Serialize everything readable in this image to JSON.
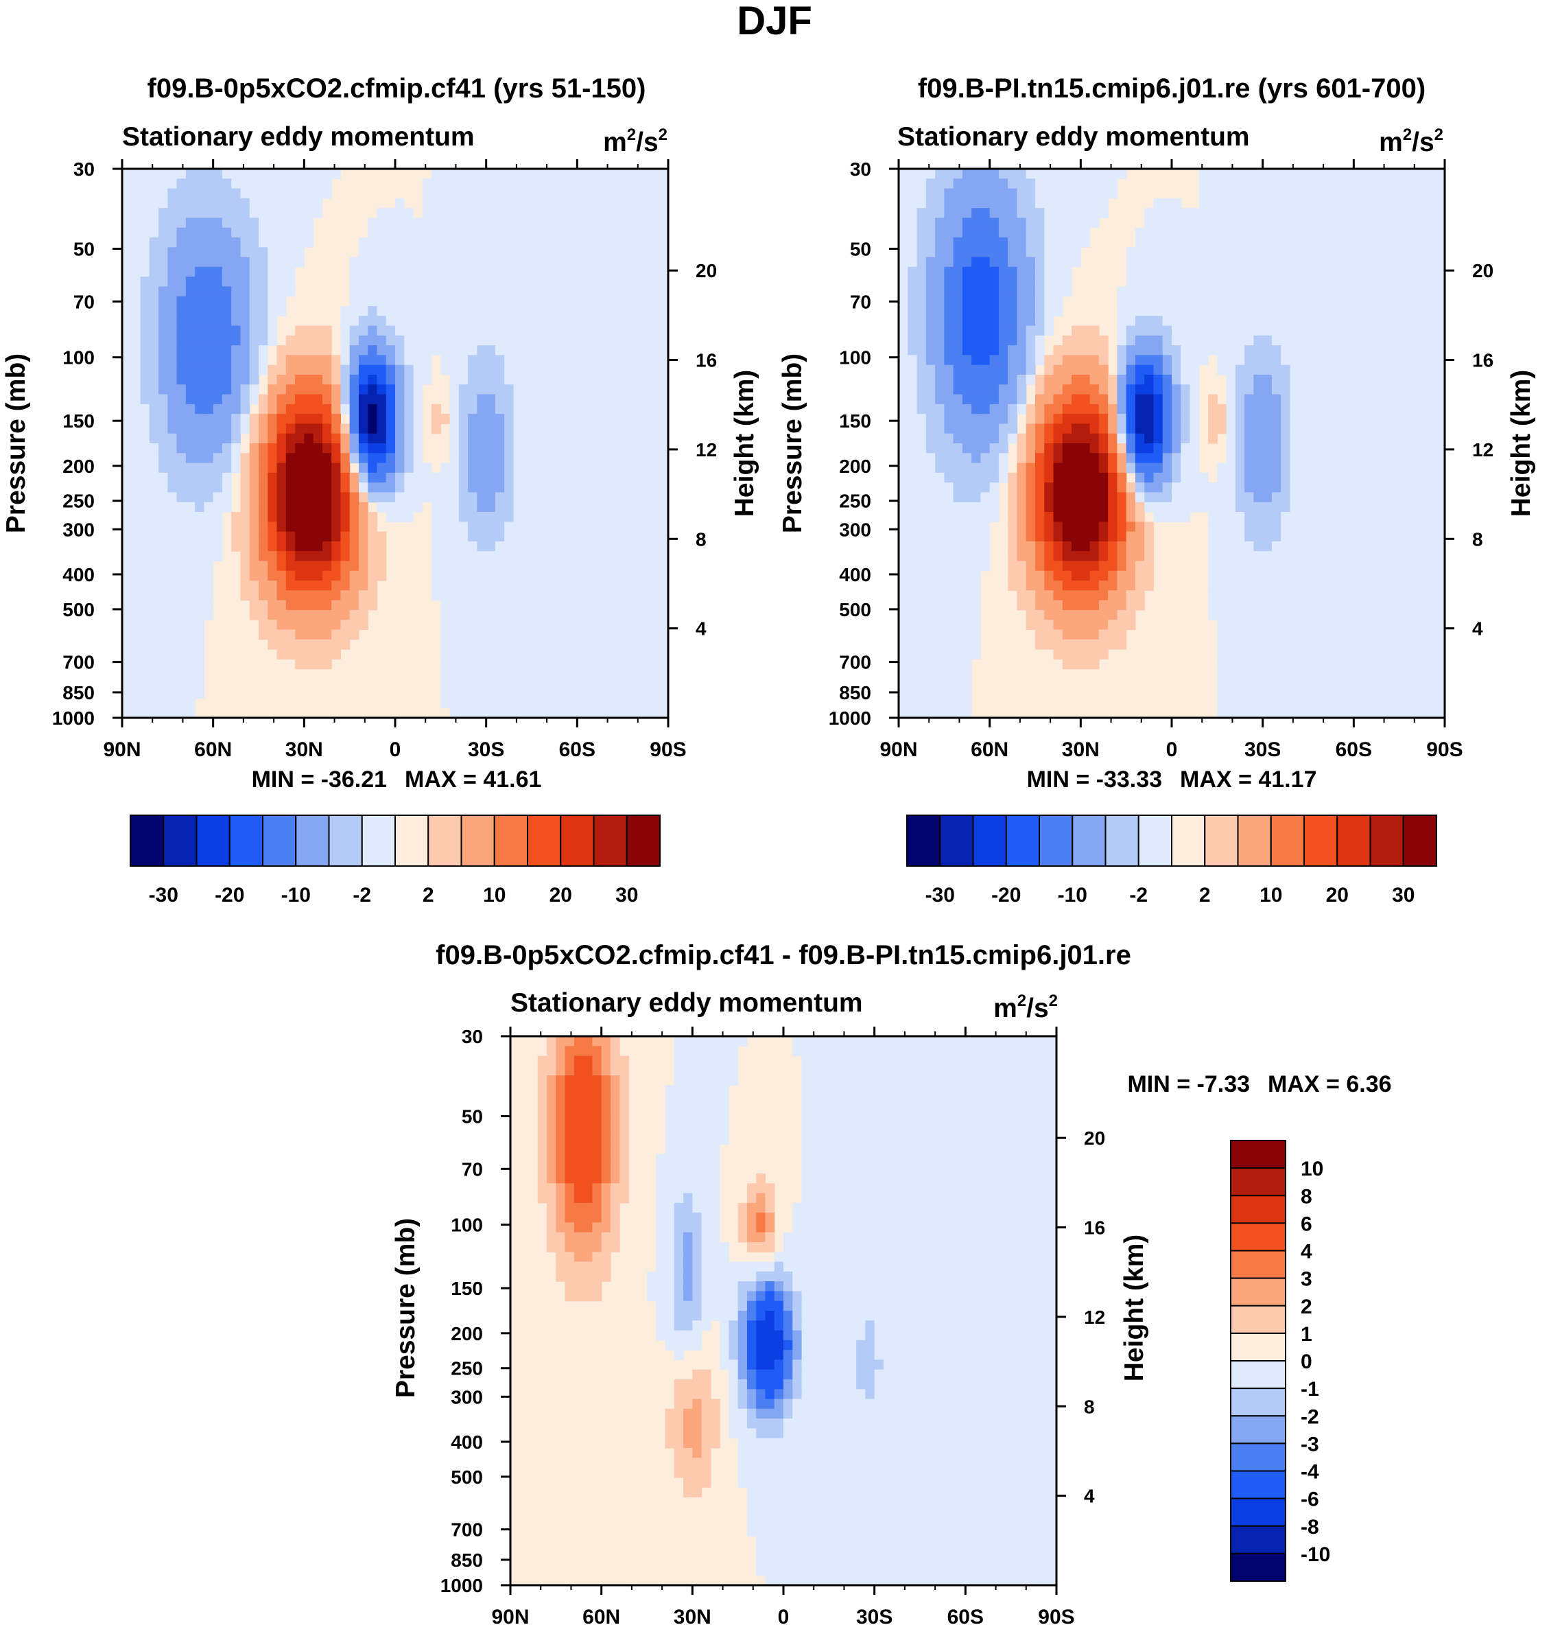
{
  "figure_title": "DJF",
  "chart_data": [
    {
      "type": "heatmap",
      "title": "f09.B-0p5xCO2.cfmip.cf41 (yrs 51-150)",
      "left_subtitle": "Stationary eddy momentum",
      "units": {
        "base": "m",
        "exp1": "2",
        "mid": "/s",
        "exp2": "2"
      },
      "ylabel": "Pressure (mb)",
      "ylabel_right": "Height (km)",
      "x_ticks": [
        "90N",
        "60N",
        "30N",
        "0",
        "30S",
        "60S",
        "90S"
      ],
      "y_ticks": [
        30,
        50,
        70,
        100,
        150,
        200,
        250,
        300,
        400,
        500,
        700,
        850,
        1000
      ],
      "height_ticks": [
        20,
        16,
        12,
        8,
        4
      ],
      "min": -36.21,
      "max": 41.61,
      "stats_text": {
        "min_label": "MIN = -36.21",
        "max_label": "MAX =  41.61"
      },
      "colorbar_ticks": [
        "-30",
        "-20",
        "-10",
        "-2",
        "2",
        "10",
        "20",
        "30"
      ],
      "features": [
        {
          "lat": 62,
          "p": 90,
          "value": -15,
          "lat_width": 11,
          "p_width": 0.55
        },
        {
          "lat": 28,
          "p": 240,
          "value": 41.61,
          "lat_width": 11,
          "p_width": 0.45
        },
        {
          "lat": 8,
          "p": 150,
          "value": -36.21,
          "lat_width": 6,
          "p_width": 0.3
        },
        {
          "lat": -30,
          "p": 180,
          "value": -8,
          "lat_width": 6,
          "p_width": 0.4
        },
        {
          "lat": -15,
          "p": 150,
          "value": 3,
          "lat_width": 3,
          "p_width": 0.15
        }
      ]
    },
    {
      "type": "heatmap",
      "title": "f09.B-PI.tn15.cmip6.j01.re (yrs 601-700)",
      "left_subtitle": "Stationary eddy momentum",
      "units": {
        "base": "m",
        "exp1": "2",
        "mid": "/s",
        "exp2": "2"
      },
      "ylabel": "Pressure (mb)",
      "ylabel_right": "Height (km)",
      "x_ticks": [
        "90N",
        "60N",
        "30N",
        "0",
        "30S",
        "60S",
        "90S"
      ],
      "y_ticks": [
        30,
        50,
        70,
        100,
        150,
        200,
        250,
        300,
        400,
        500,
        700,
        850,
        1000
      ],
      "height_ticks": [
        20,
        16,
        12,
        8,
        4
      ],
      "min": -33.33,
      "max": 41.17,
      "stats_text": {
        "min_label": "MIN = -33.33",
        "max_label": "MAX =  41.17"
      },
      "colorbar_ticks": [
        "-30",
        "-20",
        "-10",
        "-2",
        "2",
        "10",
        "20",
        "30"
      ],
      "features": [
        {
          "lat": 63,
          "p": 75,
          "value": -18,
          "lat_width": 11,
          "p_width": 0.6
        },
        {
          "lat": 30,
          "p": 240,
          "value": 41.17,
          "lat_width": 11,
          "p_width": 0.45
        },
        {
          "lat": 9,
          "p": 150,
          "value": -33.33,
          "lat_width": 6,
          "p_width": 0.3
        },
        {
          "lat": -30,
          "p": 170,
          "value": -9,
          "lat_width": 6,
          "p_width": 0.4
        },
        {
          "lat": -15,
          "p": 150,
          "value": 4,
          "lat_width": 3,
          "p_width": 0.15
        }
      ]
    },
    {
      "type": "heatmap",
      "title": "f09.B-0p5xCO2.cfmip.cf41 - f09.B-PI.tn15.cmip6.j01.re",
      "left_subtitle": "Stationary eddy momentum",
      "units": {
        "base": "m",
        "exp1": "2",
        "mid": "/s",
        "exp2": "2"
      },
      "ylabel": "Pressure (mb)",
      "ylabel_right": "Height (km)",
      "x_ticks": [
        "90N",
        "60N",
        "30N",
        "0",
        "30S",
        "60S",
        "90S"
      ],
      "y_ticks": [
        30,
        50,
        70,
        100,
        150,
        200,
        250,
        300,
        400,
        500,
        700,
        850,
        1000
      ],
      "height_ticks": [
        20,
        16,
        12,
        8,
        4
      ],
      "min": -7.33,
      "max": 6.36,
      "stats_text": {
        "min_label": "MIN =  -7.33",
        "max_label": "MAX =   6.36"
      },
      "colorbar_ticks": [
        "10",
        "8",
        "6",
        "4",
        "3",
        "2",
        "1",
        "0",
        "-1",
        "-2",
        "-3",
        "-4",
        "-6",
        "-8",
        "-10"
      ],
      "features": [
        {
          "lat": 66,
          "p": 55,
          "value": 5.5,
          "lat_width": 8,
          "p_width": 0.6
        },
        {
          "lat": 32,
          "p": 140,
          "value": -2.5,
          "lat_width": 4,
          "p_width": 0.4
        },
        {
          "lat": 8,
          "p": 100,
          "value": 3.5,
          "lat_width": 4,
          "p_width": 0.2
        },
        {
          "lat": 5,
          "p": 215,
          "value": -7.33,
          "lat_width": 6,
          "p_width": 0.3
        },
        {
          "lat": 30,
          "p": 350,
          "value": 2.5,
          "lat_width": 6,
          "p_width": 0.35
        },
        {
          "lat": -28,
          "p": 240,
          "value": -2,
          "lat_width": 3,
          "p_width": 0.2
        }
      ]
    }
  ],
  "colorbar_colors": [
    "#02036e",
    "#0522b0",
    "#0b3fe3",
    "#1f5cf5",
    "#4c7ff2",
    "#85a6f3",
    "#b5cbf7",
    "#dfeafc",
    "#fdeddc",
    "#fdcab0",
    "#fca67d",
    "#f57a45",
    "#f0511e",
    "#dd3512",
    "#b31c0c",
    "#880407"
  ],
  "colorbar_levels_full": [
    -30,
    -25,
    -20,
    -15,
    -10,
    -5,
    -2,
    0,
    2,
    5,
    10,
    15,
    20,
    25,
    30
  ],
  "colorbar_levels_diff": [
    -10,
    -8,
    -6,
    -4,
    -3,
    -2,
    -1,
    0,
    1,
    2,
    3,
    4,
    6,
    8,
    10
  ]
}
